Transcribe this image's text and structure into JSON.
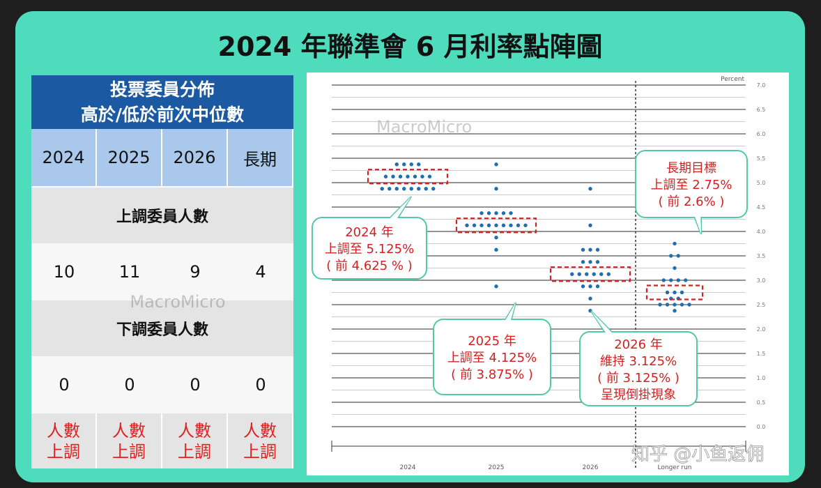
{
  "title": "2024 年聯準會 6 月利率點陣圖",
  "watermarks": [
    "MacroMicro",
    "MacroMicro",
    "知乎 @小鱼返佣"
  ],
  "table": {
    "header": [
      "投票委員分佈",
      "高於/低於前次中位數"
    ],
    "columns": [
      "2024",
      "2025",
      "2026",
      "長期"
    ],
    "rows": [
      {
        "label": "上調委員人數",
        "values": [
          10,
          11,
          9,
          4
        ]
      },
      {
        "label": "下調委員人數",
        "values": [
          0,
          0,
          0,
          0
        ]
      }
    ],
    "footer": [
      [
        "人數",
        "上調"
      ],
      [
        "人數",
        "上調"
      ],
      [
        "人數",
        "上調"
      ],
      [
        "人數",
        "上調"
      ]
    ]
  },
  "chart_data": {
    "type": "dot",
    "y_label": "Percent",
    "categories": [
      "2024",
      "2025",
      "2026",
      "Longer run"
    ],
    "values": [
      [
        5.375,
        5.375,
        5.375,
        5.375,
        5.125,
        5.125,
        5.125,
        5.125,
        5.125,
        5.125,
        5.125,
        4.875,
        4.875,
        4.875,
        4.875,
        4.875,
        4.875,
        4.875,
        4.875
      ],
      [
        5.375,
        4.875,
        4.375,
        4.375,
        4.375,
        4.375,
        4.375,
        4.125,
        4.125,
        4.125,
        4.125,
        4.125,
        4.125,
        4.125,
        4.125,
        4.125,
        3.875,
        3.625,
        2.875
      ],
      [
        4.875,
        4.125,
        3.625,
        3.625,
        3.625,
        3.375,
        3.375,
        3.375,
        3.125,
        3.125,
        3.125,
        3.125,
        3.125,
        3.125,
        2.875,
        2.875,
        2.875,
        2.625,
        2.375
      ],
      [
        3.75,
        3.5,
        3.5,
        3.25,
        3.0,
        3.0,
        3.0,
        3.0,
        2.75,
        2.75,
        2.75,
        2.625,
        2.625,
        2.5,
        2.5,
        2.5,
        2.5,
        2.5,
        2.375
      ]
    ],
    "color": "#1f6fb0",
    "medians": [
      5.125,
      4.125,
      3.125,
      2.75
    ],
    "median_color": "#d42020",
    "ylim": [
      0,
      7
    ],
    "yticks": [
      {
        "value": 0,
        "label": "0.0"
      },
      0.5,
      {
        "value": 1,
        "label": "1.0"
      },
      1.5,
      {
        "value": 2,
        "label": "2.0"
      },
      2.5,
      {
        "value": 3,
        "label": "3.0"
      },
      3.5,
      {
        "value": 4,
        "label": "4.0"
      },
      4.5,
      {
        "value": 5,
        "label": "5.0"
      },
      5.5,
      {
        "value": 6,
        "label": "6.0"
      },
      6.5,
      {
        "value": 7,
        "label": "7.0"
      }
    ],
    "grid": true,
    "annotations": [
      [
        "2024 年",
        "上調至 5.125%",
        "( 前 4.625 % )"
      ],
      [
        "2025 年",
        "上調至 4.125%",
        "( 前 3.875% )"
      ],
      [
        "2026 年",
        "維持 3.125%",
        "( 前 3.125% )",
        "呈現倒掛現象"
      ],
      [
        "長期目標",
        "上調至 2.75%",
        "( 前 2.6% )"
      ]
    ]
  }
}
